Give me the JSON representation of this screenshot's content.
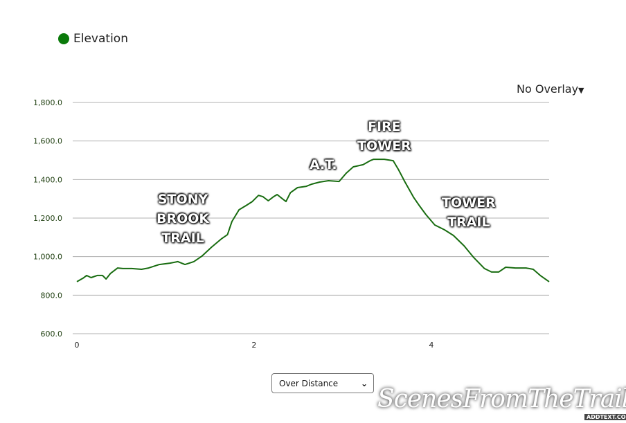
{
  "legend": {
    "label": "Elevation",
    "color": "#0a7a0a"
  },
  "overlay_menu": {
    "label": "No Overlay",
    "icon": "caret-down-icon"
  },
  "x_mode_select": {
    "value": "Over Distance",
    "icon": "chevron-down-icon"
  },
  "watermark": {
    "text": "ScenesFromTheTrail.com",
    "badge": "ADDTEXT.COM"
  },
  "annotations": [
    {
      "lines": [
        "STONY",
        "BROOK",
        "TRAIL"
      ]
    },
    {
      "lines": [
        "A.T."
      ]
    },
    {
      "lines": [
        "FIRE",
        "TOWER"
      ]
    },
    {
      "lines": [
        "TOWER",
        "TRAIL"
      ]
    }
  ],
  "chart_data": {
    "type": "line",
    "series": [
      {
        "name": "Elevation",
        "color": "#186c10"
      }
    ],
    "ylim": [
      600,
      1800
    ],
    "yticks": [
      "600.0",
      "800.0",
      "1,000.0",
      "1,200.0",
      "1,400.0",
      "1,600.0",
      "1,800.0"
    ],
    "ytick_values": [
      600,
      800,
      1000,
      1200,
      1400,
      1600,
      1800
    ],
    "xlim": [
      0,
      5.33
    ],
    "xticks": [
      "0",
      "2",
      "4"
    ],
    "xtick_values": [
      0,
      2,
      4
    ],
    "grid": "horizontal",
    "points": [
      [
        0,
        870
      ],
      [
        0.07,
        888
      ],
      [
        0.11,
        902
      ],
      [
        0.16,
        891
      ],
      [
        0.23,
        902
      ],
      [
        0.29,
        902
      ],
      [
        0.33,
        884
      ],
      [
        0.38,
        913
      ],
      [
        0.46,
        941
      ],
      [
        0.52,
        938
      ],
      [
        0.62,
        938
      ],
      [
        0.73,
        934
      ],
      [
        0.81,
        941
      ],
      [
        0.93,
        959
      ],
      [
        1.05,
        966
      ],
      [
        1.14,
        974
      ],
      [
        1.22,
        959
      ],
      [
        1.32,
        974
      ],
      [
        1.41,
        1002
      ],
      [
        1.52,
        1049
      ],
      [
        1.63,
        1092
      ],
      [
        1.7,
        1114
      ],
      [
        1.75,
        1182
      ],
      [
        1.83,
        1243
      ],
      [
        1.91,
        1265
      ],
      [
        1.98,
        1286
      ],
      [
        2.05,
        1318
      ],
      [
        2.1,
        1311
      ],
      [
        2.16,
        1290
      ],
      [
        2.22,
        1311
      ],
      [
        2.26,
        1322
      ],
      [
        2.32,
        1300
      ],
      [
        2.36,
        1286
      ],
      [
        2.41,
        1332
      ],
      [
        2.49,
        1358
      ],
      [
        2.59,
        1365
      ],
      [
        2.65,
        1376
      ],
      [
        2.74,
        1387
      ],
      [
        2.84,
        1394
      ],
      [
        2.96,
        1390
      ],
      [
        3.04,
        1433
      ],
      [
        3.12,
        1466
      ],
      [
        3.23,
        1477
      ],
      [
        3.31,
        1498
      ],
      [
        3.35,
        1505
      ],
      [
        3.47,
        1505
      ],
      [
        3.57,
        1498
      ],
      [
        3.63,
        1451
      ],
      [
        3.7,
        1390
      ],
      [
        3.8,
        1308
      ],
      [
        3.86,
        1268
      ],
      [
        3.94,
        1218
      ],
      [
        4.04,
        1164
      ],
      [
        4.15,
        1139
      ],
      [
        4.25,
        1110
      ],
      [
        4.37,
        1056
      ],
      [
        4.48,
        995
      ],
      [
        4.6,
        938
      ],
      [
        4.68,
        920
      ],
      [
        4.76,
        920
      ],
      [
        4.84,
        945
      ],
      [
        4.95,
        941
      ],
      [
        5.07,
        941
      ],
      [
        5.15,
        934
      ],
      [
        5.23,
        902
      ],
      [
        5.33,
        870
      ]
    ]
  }
}
